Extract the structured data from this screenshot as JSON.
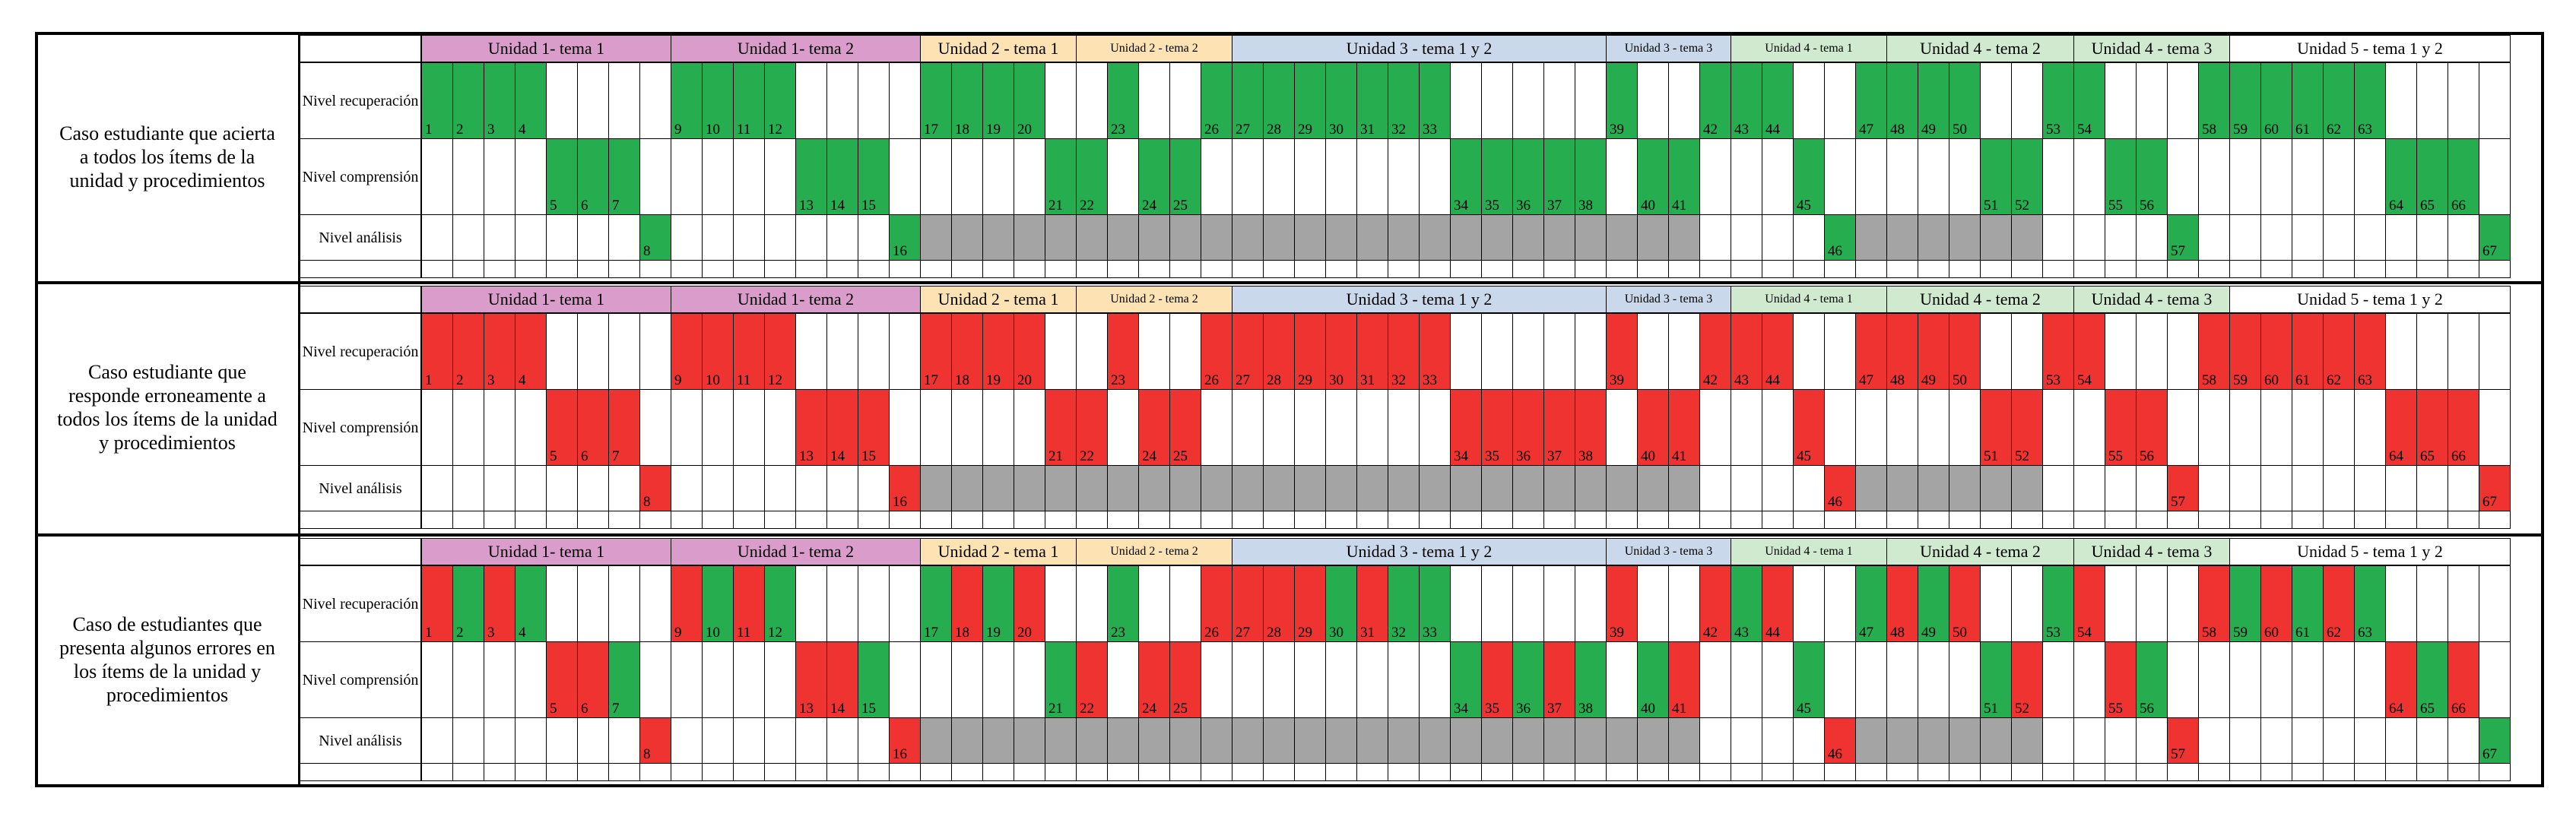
{
  "colors": {
    "correct": "#25ad50",
    "incorrect": "#ee3330",
    "not_applicable": "#a4a4a4",
    "unit1": "#d99ccb",
    "unit2": "#fde3b4",
    "unit3": "#c9d8ea",
    "unit4": "#cfeacf",
    "unit5": "#ffffff",
    "border": "#000000"
  },
  "units": [
    {
      "label": "Unidad 1- tema 1",
      "color_key": "unit1",
      "small": false
    },
    {
      "label": "Unidad 1- tema 2",
      "color_key": "unit1",
      "small": false
    },
    {
      "label": "Unidad 2 - tema 1",
      "color_key": "unit2",
      "small": false
    },
    {
      "label": "Unidad 2 - tema 2",
      "color_key": "unit2",
      "small": true
    },
    {
      "label": "Unidad 3 - tema 1 y 2",
      "color_key": "unit3",
      "small": false
    },
    {
      "label": "Unidad 3 - tema 3",
      "color_key": "unit3",
      "small": true
    },
    {
      "label": "Unidad 4 - tema 1",
      "color_key": "unit4",
      "small": true
    },
    {
      "label": "Unidad 4 - tema 2",
      "color_key": "unit4",
      "small": false
    },
    {
      "label": "Unidad 4 - tema 3",
      "color_key": "unit4",
      "small": false
    },
    {
      "label": "Unidad 5 - tema 1 y 2",
      "color_key": "unit5",
      "small": false
    }
  ],
  "levels": [
    "Nivel recuperación",
    "Nivel comprensión",
    "Nivel análisis"
  ],
  "cases": [
    {
      "label": "Caso estudiante que acierta a todos los ítems de la unidad y procedimientos",
      "wrong_items": []
    },
    {
      "label": "Caso estudiante que responde erroneamente a todos los ítems de la unidad y procedimientos",
      "wrong_items": [
        1,
        2,
        3,
        4,
        5,
        6,
        7,
        8,
        9,
        10,
        11,
        12,
        13,
        14,
        15,
        16,
        17,
        18,
        19,
        20,
        21,
        22,
        23,
        24,
        25,
        26,
        27,
        28,
        29,
        30,
        31,
        32,
        33,
        34,
        35,
        36,
        37,
        38,
        39,
        40,
        41,
        42,
        43,
        44,
        45,
        46,
        47,
        48,
        49,
        50,
        51,
        52,
        53,
        54,
        55,
        56,
        57,
        58,
        59,
        60,
        61,
        62,
        63,
        64,
        65,
        66,
        67
      ]
    },
    {
      "label": "Caso de estudiantes que presenta algunos errores en los  ítems de la unidad y procedimientos",
      "wrong_items": [
        1,
        3,
        5,
        6,
        8,
        9,
        11,
        13,
        14,
        16,
        18,
        20,
        22,
        24,
        25,
        26,
        27,
        28,
        29,
        31,
        35,
        37,
        39,
        41,
        42,
        44,
        46,
        48,
        50,
        52,
        54,
        55,
        57,
        58,
        60,
        62,
        64,
        66
      ]
    }
  ],
  "items": [
    {
      "n": 1,
      "level": 0
    },
    {
      "n": 2,
      "level": 0
    },
    {
      "n": 3,
      "level": 0
    },
    {
      "n": 4,
      "level": 0
    },
    {
      "n": 5,
      "level": 1
    },
    {
      "n": 6,
      "level": 1
    },
    {
      "n": 7,
      "level": 1
    },
    {
      "n": 8,
      "level": 2
    },
    {
      "n": 9,
      "level": 0
    },
    {
      "n": 10,
      "level": 0
    },
    {
      "n": 11,
      "level": 0
    },
    {
      "n": 12,
      "level": 0
    },
    {
      "n": 13,
      "level": 1
    },
    {
      "n": 14,
      "level": 1
    },
    {
      "n": 15,
      "level": 1
    },
    {
      "n": 16,
      "level": 2
    },
    {
      "n": 17,
      "level": 0
    },
    {
      "n": 18,
      "level": 0
    },
    {
      "n": 19,
      "level": 0
    },
    {
      "n": 20,
      "level": 0
    },
    {
      "n": 21,
      "level": 1
    },
    {
      "n": 22,
      "level": 1
    },
    {
      "n": 23,
      "level": 0
    },
    {
      "n": 24,
      "level": 1
    },
    {
      "n": 25,
      "level": 1
    },
    {
      "n": 26,
      "level": 0
    },
    {
      "n": 27,
      "level": 0
    },
    {
      "n": 28,
      "level": 0
    },
    {
      "n": 29,
      "level": 0
    },
    {
      "n": 30,
      "level": 0
    },
    {
      "n": 31,
      "level": 0
    },
    {
      "n": 32,
      "level": 0
    },
    {
      "n": 33,
      "level": 0
    },
    {
      "n": 34,
      "level": 1
    },
    {
      "n": 35,
      "level": 1
    },
    {
      "n": 36,
      "level": 1
    },
    {
      "n": 37,
      "level": 1
    },
    {
      "n": 38,
      "level": 1
    },
    {
      "n": 39,
      "level": 0
    },
    {
      "n": 40,
      "level": 1
    },
    {
      "n": 41,
      "level": 1
    },
    {
      "n": 42,
      "level": 0
    },
    {
      "n": 43,
      "level": 0
    },
    {
      "n": 44,
      "level": 0
    },
    {
      "n": 45,
      "level": 1
    },
    {
      "n": 46,
      "level": 2
    },
    {
      "n": 47,
      "level": 0
    },
    {
      "n": 48,
      "level": 0
    },
    {
      "n": 49,
      "level": 0
    },
    {
      "n": 50,
      "level": 0
    },
    {
      "n": 51,
      "level": 1
    },
    {
      "n": 52,
      "level": 1
    },
    {
      "n": 53,
      "level": 0
    },
    {
      "n": 54,
      "level": 0
    },
    {
      "n": 55,
      "level": 1
    },
    {
      "n": 56,
      "level": 1
    },
    {
      "n": 57,
      "level": 2
    },
    {
      "n": 58,
      "level": 0
    },
    {
      "n": 59,
      "level": 0
    },
    {
      "n": 60,
      "level": 0
    },
    {
      "n": 61,
      "level": 0
    },
    {
      "n": 62,
      "level": 0
    },
    {
      "n": 63,
      "level": 0
    },
    {
      "n": 64,
      "level": 1
    },
    {
      "n": 65,
      "level": 1
    },
    {
      "n": 66,
      "level": 1
    },
    {
      "n": 67,
      "level": 2
    }
  ],
  "not_evaluated_analysis_items": [
    17,
    18,
    19,
    20,
    21,
    22,
    23,
    24,
    25,
    26,
    27,
    28,
    29,
    30,
    31,
    32,
    33,
    34,
    35,
    36,
    37,
    38,
    39,
    40,
    41,
    47,
    48,
    49,
    50,
    51,
    52
  ]
}
